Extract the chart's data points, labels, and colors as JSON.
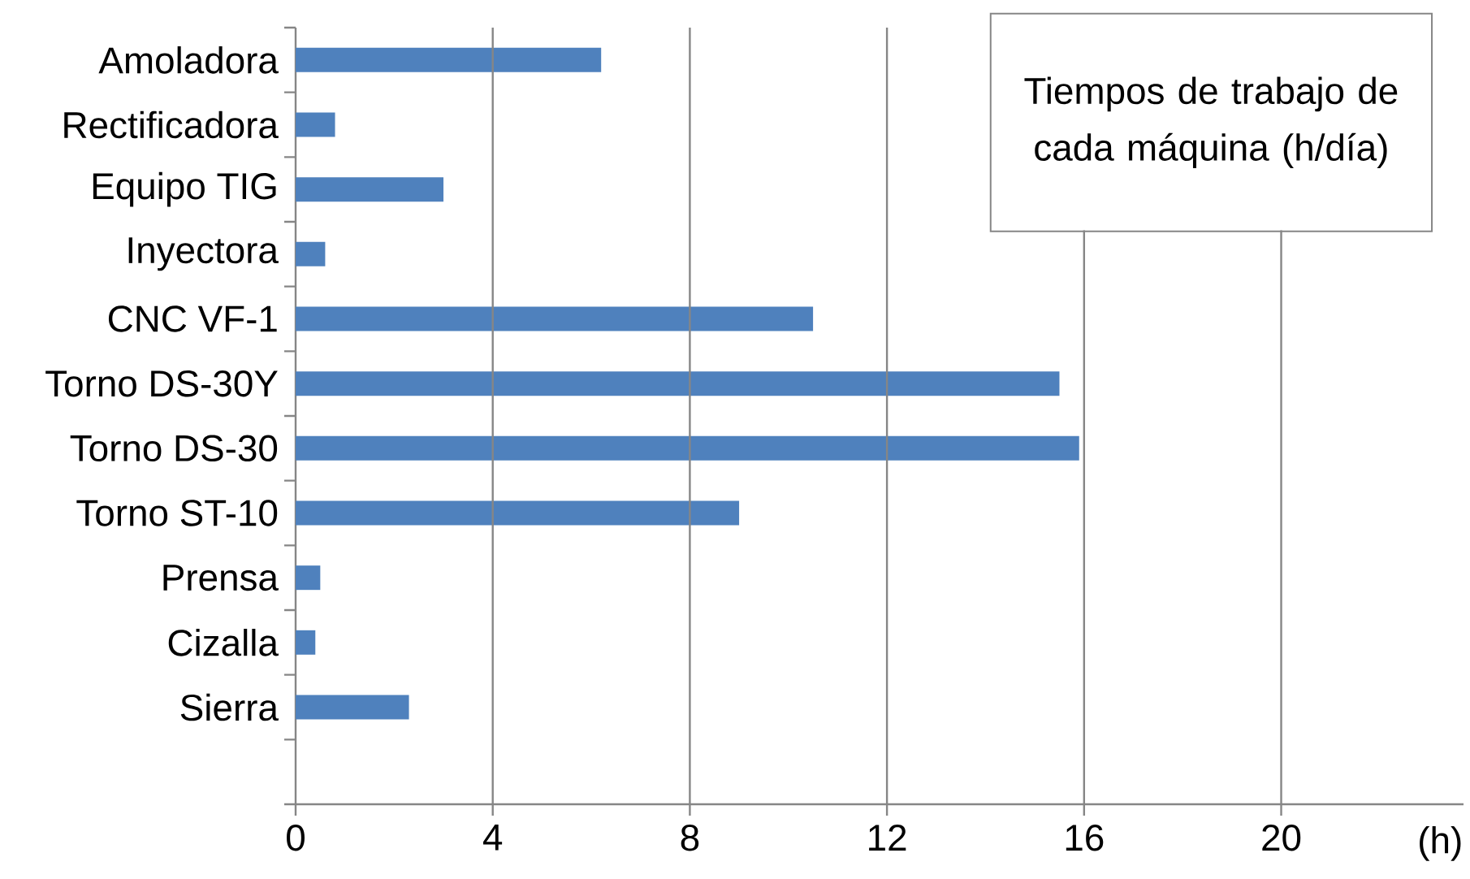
{
  "chart_data": {
    "type": "bar",
    "orientation": "horizontal",
    "title": "Tiempos de trabajo de cada máquina (h/día)",
    "xlabel": "(h)",
    "categories": [
      "Amoladora",
      "Rectificadora",
      "Equipo TIG",
      "Inyectora",
      "CNC VF-1",
      "Torno DS-30Y",
      "Torno DS-30",
      "Torno ST-10",
      "Prensa",
      "Cizalla",
      "Sierra",
      null
    ],
    "values": [
      6.2,
      0.8,
      3.0,
      0.6,
      10.5,
      15.5,
      15.9,
      9.0,
      0.5,
      0.4,
      2.3,
      null
    ],
    "color": "#4f81bd",
    "xlim": [
      0,
      23.7
    ],
    "xticks": [
      0,
      4,
      8,
      12,
      16,
      20
    ],
    "grid": "x"
  }
}
